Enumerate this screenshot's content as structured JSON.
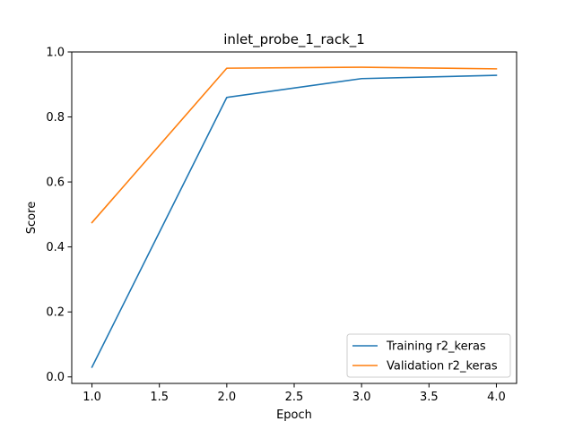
{
  "chart_data": {
    "type": "line",
    "title": "inlet_probe_1_rack_1",
    "xlabel": "Epoch",
    "ylabel": "Score",
    "x": [
      1.0,
      2.0,
      3.0,
      4.0
    ],
    "xlim": [
      0.85,
      4.15
    ],
    "ylim": [
      -0.02,
      1.0
    ],
    "xticks": [
      1.0,
      1.5,
      2.0,
      2.5,
      3.0,
      3.5,
      4.0
    ],
    "xtick_labels": [
      "1.0",
      "1.5",
      "2.0",
      "2.5",
      "3.0",
      "3.5",
      "4.0"
    ],
    "yticks": [
      0.0,
      0.2,
      0.4,
      0.6,
      0.8,
      1.0
    ],
    "ytick_labels": [
      "0.0",
      "0.2",
      "0.4",
      "0.6",
      "0.8",
      "1.0"
    ],
    "grid": false,
    "legend_position": "lower-right",
    "series": [
      {
        "name": "Training r2_keras",
        "color": "#1f77b4",
        "values": [
          0.03,
          0.86,
          0.918,
          0.928
        ]
      },
      {
        "name": "Validation r2_keras",
        "color": "#ff7f0e",
        "values": [
          0.475,
          0.95,
          0.953,
          0.948
        ]
      }
    ]
  }
}
